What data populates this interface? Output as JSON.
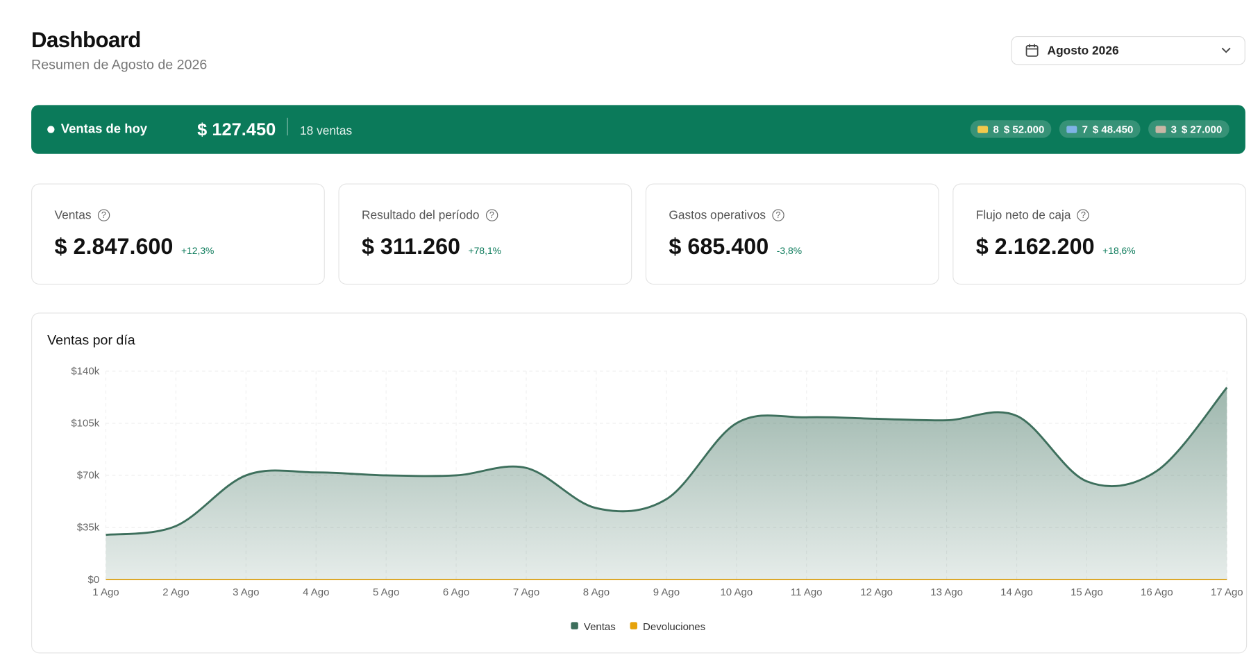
{
  "header": {
    "title": "Dashboard",
    "subtitle": "Resumen de Agosto de 2026",
    "period": "Agosto 2026"
  },
  "today": {
    "label": "Ventas de hoy",
    "total": "$ 127.450",
    "count": "18 ventas",
    "methods": [
      {
        "count": "8",
        "amount": "$ 52.000",
        "color": "#f2c94c"
      },
      {
        "count": "7",
        "amount": "$ 48.450",
        "color": "#7fb3e6"
      },
      {
        "count": "3",
        "amount": "$ 27.000",
        "color": "#c9b7a6"
      }
    ]
  },
  "kpis": [
    {
      "label": "Ventas",
      "value": "$ 2.847.600",
      "change": "+12,3%"
    },
    {
      "label": "Resultado del período",
      "value": "$ 311.260",
      "change": "+78,1%"
    },
    {
      "label": "Gastos operativos",
      "value": "$ 685.400",
      "change": "-3,8%"
    },
    {
      "label": "Flujo neto de caja",
      "value": "$ 2.162.200",
      "change": "+18,6%"
    }
  ],
  "chart_data": {
    "type": "area",
    "title": "Ventas por día",
    "categories": [
      "1 Ago",
      "2 Ago",
      "3 Ago",
      "4 Ago",
      "5 Ago",
      "6 Ago",
      "7 Ago",
      "8 Ago",
      "9 Ago",
      "10 Ago",
      "11 Ago",
      "12 Ago",
      "13 Ago",
      "14 Ago",
      "15 Ago",
      "16 Ago",
      "17 Ago"
    ],
    "series": [
      {
        "name": "Ventas",
        "color": "#3d6f5c",
        "values": [
          30000,
          36000,
          70000,
          72000,
          70000,
          70000,
          75000,
          48000,
          54000,
          105000,
          109000,
          108000,
          107000,
          110000,
          66000,
          73000,
          129000
        ]
      },
      {
        "name": "Devoluciones",
        "color": "#e6a20a",
        "values": [
          0,
          0,
          0,
          0,
          0,
          0,
          0,
          0,
          0,
          0,
          0,
          0,
          0,
          0,
          0,
          0,
          0
        ]
      }
    ],
    "ylim": [
      0,
      140000
    ],
    "yticks": [
      {
        "value": 0,
        "label": "$0"
      },
      {
        "value": 35000,
        "label": "$35k"
      },
      {
        "value": 70000,
        "label": "$70k"
      },
      {
        "value": 105000,
        "label": "$105k"
      },
      {
        "value": 140000,
        "label": "$140k"
      }
    ],
    "grid": true
  }
}
